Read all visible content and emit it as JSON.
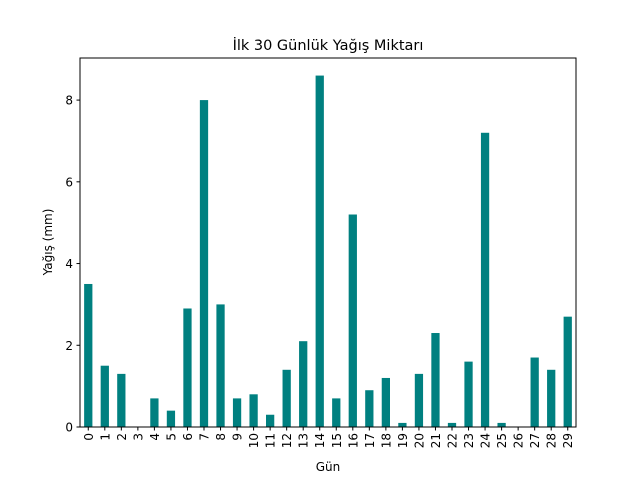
{
  "chart_data": {
    "type": "bar",
    "title": "İlk 30 Günlük Yağış Miktarı",
    "xlabel": "Gün",
    "ylabel": "Yağış (mm)",
    "categories": [
      "0",
      "1",
      "2",
      "3",
      "4",
      "5",
      "6",
      "7",
      "8",
      "9",
      "10",
      "11",
      "12",
      "13",
      "14",
      "15",
      "16",
      "17",
      "18",
      "19",
      "20",
      "21",
      "22",
      "23",
      "24",
      "25",
      "26",
      "27",
      "28",
      "29"
    ],
    "values": [
      3.5,
      1.5,
      1.3,
      0,
      0.7,
      0.4,
      2.9,
      8.0,
      3.0,
      0.7,
      0.8,
      0.3,
      1.4,
      2.1,
      8.6,
      0.7,
      5.2,
      0.9,
      1.2,
      0.1,
      1.3,
      2.3,
      0.1,
      1.6,
      7.2,
      0.1,
      0,
      1.7,
      1.4,
      2.7
    ],
    "yticks": [
      "0",
      "2",
      "4",
      "6",
      "8"
    ],
    "ylim": [
      0,
      9.03
    ],
    "grid": false,
    "bar_color": "#008080"
  }
}
